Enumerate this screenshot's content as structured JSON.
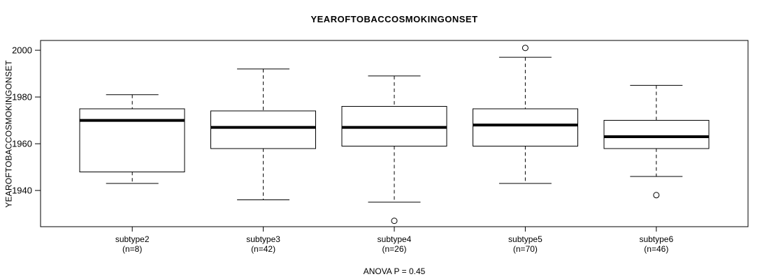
{
  "title": "YEAROFTOBACCOSMOKINGONSET",
  "y_axis_label": "YEAROFTOBACCOSMOKINGONSET",
  "footer": "ANOVA P = 0.45",
  "chart_data": {
    "type": "boxplot",
    "title": "YEAROFTOBACCOSMOKINGONSET",
    "ylabel": "YEAROFTOBACCOSMOKINGONSET",
    "xlabel": "",
    "annotation": "ANOVA P = 0.45",
    "ylim": [
      1924.5,
      2004.2
    ],
    "yticks": [
      1940,
      1960,
      1980,
      2000
    ],
    "grid": false,
    "legend": "none",
    "colors": {
      "line": "#000000",
      "box_fill": "#ffffff",
      "background": "#ffffff"
    },
    "groups": [
      {
        "label": "subtype2",
        "n_label": "(n=8)",
        "n": 8,
        "whisker_low": 1943,
        "q1": 1948,
        "median": 1970,
        "q3": 1975,
        "whisker_high": 1981,
        "outliers": []
      },
      {
        "label": "subtype3",
        "n_label": "(n=42)",
        "n": 42,
        "whisker_low": 1936,
        "q1": 1958,
        "median": 1967,
        "q3": 1974,
        "whisker_high": 1992,
        "outliers": []
      },
      {
        "label": "subtype4",
        "n_label": "(n=26)",
        "n": 26,
        "whisker_low": 1935,
        "q1": 1959,
        "median": 1967,
        "q3": 1976,
        "whisker_high": 1989,
        "outliers": [
          1927
        ]
      },
      {
        "label": "subtype5",
        "n_label": "(n=70)",
        "n": 70,
        "whisker_low": 1943,
        "q1": 1959,
        "median": 1968,
        "q3": 1975,
        "whisker_high": 1997,
        "outliers": [
          2001
        ]
      },
      {
        "label": "subtype6",
        "n_label": "(n=46)",
        "n": 46,
        "whisker_low": 1946,
        "q1": 1958,
        "median": 1963,
        "q3": 1970,
        "whisker_high": 1985,
        "outliers": [
          1938
        ]
      }
    ]
  }
}
